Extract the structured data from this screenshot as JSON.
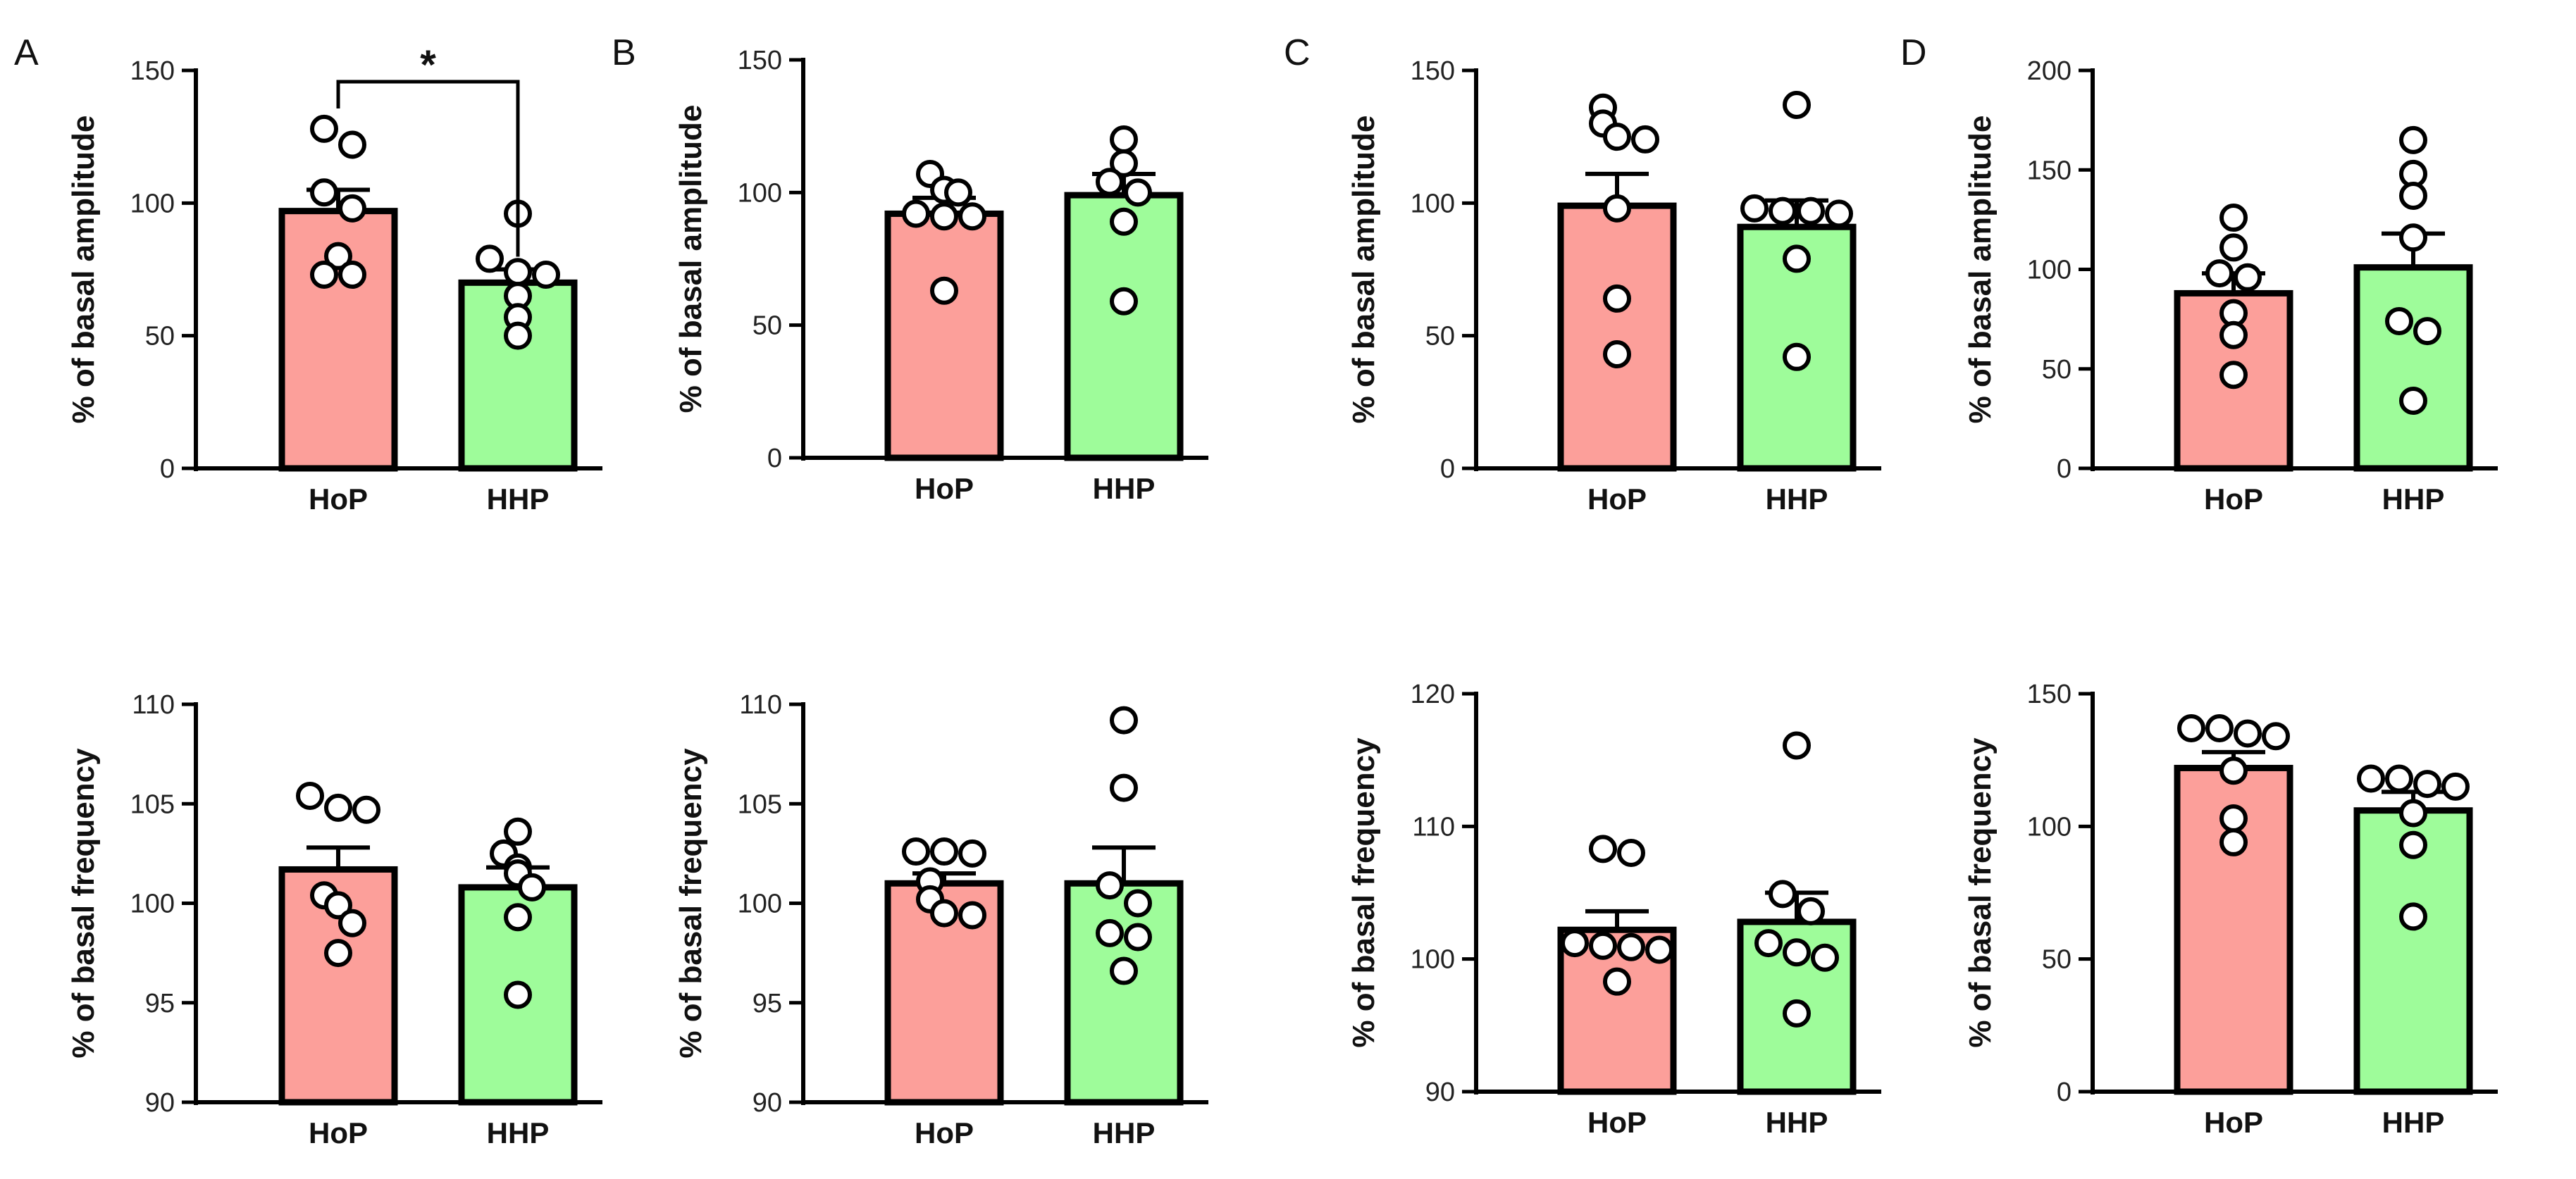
{
  "figure": {
    "panel_letters": [
      "A",
      "B",
      "C",
      "D"
    ],
    "colors": {
      "HoP": "#fc9f9a",
      "HHP": "#9efc9a",
      "axis": "#000000",
      "point_fill": "#ffffff"
    }
  },
  "chart_data": [
    {
      "id": "A-amplitude",
      "panel": "A",
      "row": "top",
      "type": "bar",
      "ylabel": "% of basal amplitude",
      "ylim": [
        0,
        150
      ],
      "yticks": [
        0,
        50,
        100,
        150
      ],
      "categories": [
        "HoP",
        "HHP"
      ],
      "means": [
        97,
        70
      ],
      "sem": [
        8,
        5
      ],
      "points": [
        [
          128,
          122,
          104,
          98,
          80,
          73,
          73
        ],
        [
          96,
          79,
          74,
          73,
          65,
          57,
          50
        ]
      ],
      "significance": {
        "label": "*",
        "between": [
          "HoP",
          "HHP"
        ]
      }
    },
    {
      "id": "B-amplitude",
      "panel": "B",
      "row": "top",
      "type": "bar",
      "ylabel": "% of basal amplitude",
      "ylim": [
        0,
        150
      ],
      "yticks": [
        0,
        50,
        100,
        150
      ],
      "categories": [
        "HoP",
        "HHP"
      ],
      "means": [
        92,
        99
      ],
      "sem": [
        6,
        8
      ],
      "points": [
        [
          107,
          101,
          100,
          92,
          91,
          91,
          63
        ],
        [
          120,
          111,
          104,
          100,
          89,
          59
        ]
      ]
    },
    {
      "id": "C-amplitude",
      "panel": "C",
      "row": "top",
      "type": "bar",
      "ylabel": "% of basal amplitude",
      "ylim": [
        0,
        150
      ],
      "yticks": [
        0,
        50,
        100,
        150
      ],
      "categories": [
        "HoP",
        "HHP"
      ],
      "means": [
        99,
        91
      ],
      "sem": [
        12,
        10
      ],
      "points": [
        [
          136,
          130,
          125,
          124,
          98,
          64,
          43
        ],
        [
          137,
          98,
          97,
          97,
          96,
          79,
          42
        ]
      ]
    },
    {
      "id": "D-amplitude",
      "panel": "D",
      "row": "top",
      "type": "bar",
      "ylabel": "% of basal amplitude",
      "ylim": [
        0,
        200
      ],
      "yticks": [
        0,
        50,
        100,
        150,
        200
      ],
      "categories": [
        "HoP",
        "HHP"
      ],
      "means": [
        88,
        101
      ],
      "sem": [
        10,
        17
      ],
      "points": [
        [
          126,
          111,
          98,
          96,
          78,
          67,
          47
        ],
        [
          165,
          148,
          137,
          116,
          74,
          69,
          34
        ]
      ]
    },
    {
      "id": "A-frequency",
      "panel": "A",
      "row": "bottom",
      "type": "bar",
      "ylabel": "% of basal frequency",
      "ylim": [
        90,
        110
      ],
      "yticks": [
        90,
        95,
        100,
        105,
        110
      ],
      "categories": [
        "HoP",
        "HHP"
      ],
      "means": [
        101.7,
        100.8
      ],
      "sem": [
        1.1,
        1.0
      ],
      "points": [
        [
          105.4,
          104.8,
          104.7,
          100.4,
          99.9,
          99.0,
          97.5
        ],
        [
          103.6,
          102.5,
          101.8,
          101.5,
          100.8,
          99.3,
          95.4
        ]
      ]
    },
    {
      "id": "B-frequency",
      "panel": "B",
      "row": "bottom",
      "type": "bar",
      "ylabel": "% of basal frequency",
      "ylim": [
        90,
        110
      ],
      "yticks": [
        90,
        95,
        100,
        105,
        110
      ],
      "categories": [
        "HoP",
        "HHP"
      ],
      "means": [
        101.0,
        101.0
      ],
      "sem": [
        0.5,
        1.8
      ],
      "points": [
        [
          102.6,
          102.6,
          102.5,
          101.1,
          100.2,
          99.5,
          99.4
        ],
        [
          109.2,
          105.8,
          100.9,
          100.0,
          98.5,
          98.3,
          96.6
        ]
      ]
    },
    {
      "id": "C-frequency",
      "panel": "C",
      "row": "bottom",
      "type": "bar",
      "ylabel": "% of basal frequency",
      "ylim": [
        90,
        120
      ],
      "yticks": [
        90,
        100,
        110,
        120
      ],
      "categories": [
        "HoP",
        "HHP"
      ],
      "means": [
        102.2,
        102.8
      ],
      "sem": [
        1.4,
        2.2
      ],
      "points": [
        [
          108.3,
          108.0,
          101.2,
          101.0,
          100.9,
          100.7,
          98.3
        ],
        [
          116.1,
          104.9,
          103.6,
          101.2,
          100.5,
          100.1,
          95.9
        ]
      ]
    },
    {
      "id": "D-frequency",
      "panel": "D",
      "row": "bottom",
      "type": "bar",
      "ylabel": "% of basal frequency",
      "ylim": [
        0,
        150
      ],
      "yticks": [
        0,
        50,
        100,
        150
      ],
      "categories": [
        "HoP",
        "HHP"
      ],
      "means": [
        122,
        106
      ],
      "sem": [
        6,
        7
      ],
      "points": [
        [
          137,
          137,
          135,
          134,
          121,
          103,
          94
        ],
        [
          118,
          118,
          116,
          115,
          105,
          93,
          66
        ]
      ]
    }
  ]
}
